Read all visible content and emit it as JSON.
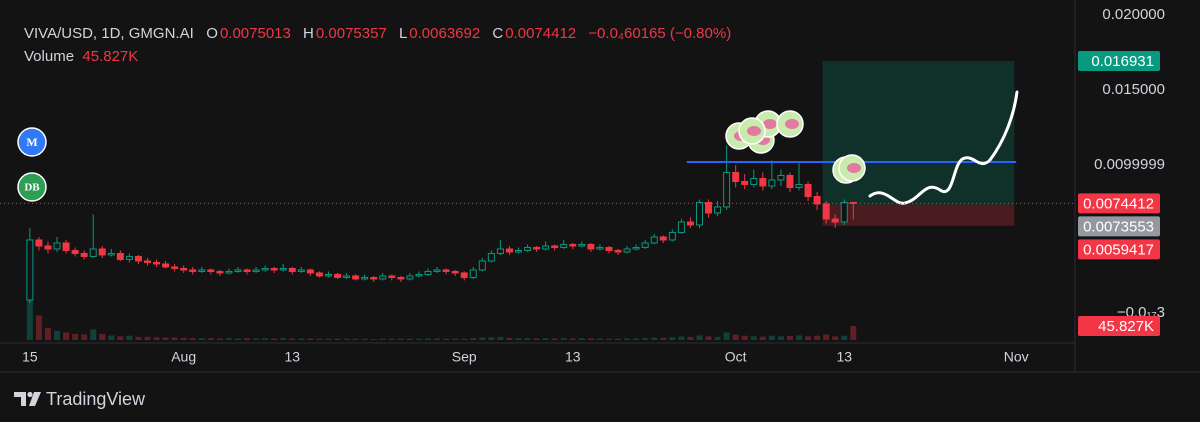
{
  "header": {
    "symbol": "VIVA/USD, 1D, GMGN.AI",
    "o_label": "O",
    "h_label": "H",
    "l_label": "L",
    "c_label": "C",
    "change": "−0.0₄60165 (−0.80%)",
    "volume_label": "Volume"
  },
  "badges": [
    "M",
    "DB"
  ],
  "brand": "TradingView",
  "chart_data": {
    "type": "candlestick",
    "x": [
      0,
      1,
      2,
      3,
      4,
      5,
      6,
      7,
      8,
      9,
      10,
      11,
      12,
      13,
      14,
      15,
      16,
      17,
      18,
      19,
      20,
      21,
      22,
      23,
      24,
      25,
      26,
      27,
      28,
      29,
      30,
      31,
      32,
      33,
      34,
      35,
      36,
      37,
      38,
      39,
      40,
      41,
      42,
      43,
      44,
      45,
      46,
      47,
      48,
      49,
      50,
      51,
      52,
      53,
      54,
      55,
      56,
      57,
      58,
      59,
      60,
      61,
      62,
      63,
      64,
      65,
      66,
      67,
      68,
      69,
      70,
      71,
      72,
      73,
      74,
      75,
      76,
      77,
      78,
      79,
      80,
      81,
      82,
      83,
      84,
      85,
      86,
      87,
      88,
      89,
      90,
      91
    ],
    "open": [
      0.001,
      0.005,
      0.0046,
      0.0044,
      0.0048,
      0.0043,
      0.0041,
      0.0039,
      0.0044,
      0.004,
      0.0041,
      0.0037,
      0.0039,
      0.0036,
      0.0035,
      0.0034,
      0.0032,
      0.0031,
      0.003,
      0.0029,
      0.003,
      0.0029,
      0.0028,
      0.0029,
      0.003,
      0.0029,
      0.003,
      0.0031,
      0.003,
      0.0031,
      0.0029,
      0.003,
      0.0028,
      0.0026,
      0.0027,
      0.0025,
      0.0026,
      0.0024,
      0.0025,
      0.0024,
      0.0026,
      0.0025,
      0.0024,
      0.0026,
      0.0027,
      0.0029,
      0.003,
      0.0029,
      0.0028,
      0.0025,
      0.003,
      0.0036,
      0.0041,
      0.0044,
      0.0042,
      0.0043,
      0.0045,
      0.0044,
      0.0046,
      0.0045,
      0.0047,
      0.0046,
      0.0047,
      0.0044,
      0.0045,
      0.0043,
      0.0042,
      0.0044,
      0.0045,
      0.0048,
      0.0052,
      0.005,
      0.0055,
      0.0062,
      0.006,
      0.0075,
      0.0068,
      0.0072,
      0.0095,
      0.0089,
      0.0087,
      0.0091,
      0.0086,
      0.009,
      0.0093,
      0.0085,
      0.0087,
      0.0079,
      0.0074,
      0.0064,
      0.0062,
      0.0075013
    ],
    "high": [
      0.0058,
      0.0052,
      0.0049,
      0.0052,
      0.005,
      0.0045,
      0.0043,
      0.0067,
      0.0046,
      0.0044,
      0.0043,
      0.0041,
      0.004,
      0.0038,
      0.0037,
      0.0036,
      0.0034,
      0.0033,
      0.0032,
      0.0032,
      0.0031,
      0.003,
      0.0031,
      0.0032,
      0.0031,
      0.0032,
      0.0033,
      0.0032,
      0.0034,
      0.0032,
      0.0032,
      0.0031,
      0.0029,
      0.0029,
      0.0028,
      0.0028,
      0.0027,
      0.0027,
      0.0026,
      0.0028,
      0.0027,
      0.0026,
      0.0028,
      0.0029,
      0.0031,
      0.0032,
      0.0031,
      0.003,
      0.0029,
      0.0032,
      0.0038,
      0.0043,
      0.005,
      0.0046,
      0.0045,
      0.0047,
      0.0046,
      0.0049,
      0.0047,
      0.005,
      0.0048,
      0.0049,
      0.0048,
      0.0047,
      0.0046,
      0.0044,
      0.0046,
      0.0047,
      0.005,
      0.0054,
      0.0053,
      0.0057,
      0.0064,
      0.0065,
      0.0077,
      0.0077,
      0.0076,
      0.0113,
      0.01,
      0.0094,
      0.0097,
      0.0095,
      0.0103,
      0.0097,
      0.0095,
      0.0101,
      0.0089,
      0.0082,
      0.0076,
      0.0067,
      0.0077,
      0.0075357
    ],
    "low": [
      0.0008,
      0.0043,
      0.0041,
      0.0042,
      0.0041,
      0.0039,
      0.0037,
      0.0038,
      0.0038,
      0.0039,
      0.0036,
      0.0035,
      0.0034,
      0.0033,
      0.0032,
      0.0031,
      0.0029,
      0.0028,
      0.0027,
      0.0028,
      0.0027,
      0.0026,
      0.0027,
      0.0028,
      0.0027,
      0.0028,
      0.0029,
      0.0028,
      0.0029,
      0.0027,
      0.0028,
      0.0026,
      0.0025,
      0.0025,
      0.0024,
      0.0024,
      0.0023,
      0.0023,
      0.0022,
      0.0023,
      0.0023,
      0.0022,
      0.0023,
      0.0025,
      0.0026,
      0.0028,
      0.0027,
      0.0026,
      0.0023,
      0.0024,
      0.0029,
      0.0035,
      0.004,
      0.004,
      0.0041,
      0.0042,
      0.0042,
      0.0043,
      0.0043,
      0.0044,
      0.0044,
      0.0045,
      0.0042,
      0.0043,
      0.0041,
      0.004,
      0.0041,
      0.0043,
      0.0044,
      0.0047,
      0.0048,
      0.0049,
      0.0054,
      0.0058,
      0.0058,
      0.0065,
      0.0066,
      0.007,
      0.0085,
      0.0084,
      0.0085,
      0.0083,
      0.0084,
      0.0086,
      0.0082,
      0.0083,
      0.0076,
      0.007,
      0.0061,
      0.0058,
      0.006,
      0.0063692
    ],
    "close": [
      0.005,
      0.0046,
      0.0044,
      0.0048,
      0.0043,
      0.0041,
      0.0039,
      0.0044,
      0.004,
      0.0041,
      0.0037,
      0.0039,
      0.0036,
      0.0035,
      0.0034,
      0.0032,
      0.0031,
      0.003,
      0.0029,
      0.003,
      0.0029,
      0.0028,
      0.0029,
      0.003,
      0.0029,
      0.003,
      0.0031,
      0.003,
      0.0031,
      0.0029,
      0.003,
      0.0028,
      0.0026,
      0.0027,
      0.0025,
      0.0026,
      0.0024,
      0.0025,
      0.0024,
      0.0026,
      0.0025,
      0.0024,
      0.0026,
      0.0027,
      0.0029,
      0.003,
      0.0029,
      0.0028,
      0.0025,
      0.003,
      0.0036,
      0.0041,
      0.0044,
      0.0042,
      0.0043,
      0.0045,
      0.0044,
      0.0046,
      0.0045,
      0.0047,
      0.0046,
      0.0047,
      0.0044,
      0.0045,
      0.0043,
      0.0042,
      0.0044,
      0.0045,
      0.0048,
      0.0052,
      0.005,
      0.0055,
      0.0062,
      0.006,
      0.0075,
      0.0068,
      0.0072,
      0.0095,
      0.0089,
      0.0087,
      0.0091,
      0.0086,
      0.009,
      0.0093,
      0.0085,
      0.0087,
      0.0079,
      0.0074,
      0.0064,
      0.0062,
      0.0075,
      0.0074412
    ],
    "volume": [
      150,
      80,
      40,
      30,
      25,
      20,
      18,
      35,
      20,
      15,
      12,
      14,
      10,
      10,
      9,
      8,
      8,
      7,
      6,
      6,
      6,
      5,
      6,
      5,
      6,
      5,
      6,
      5,
      6,
      5,
      5,
      5,
      4,
      4,
      4,
      4,
      4,
      4,
      3,
      4,
      4,
      4,
      4,
      4,
      5,
      5,
      4,
      4,
      4,
      6,
      8,
      9,
      10,
      7,
      6,
      6,
      5,
      6,
      5,
      6,
      5,
      6,
      5,
      5,
      4,
      4,
      5,
      5,
      6,
      8,
      7,
      9,
      12,
      10,
      15,
      12,
      10,
      25,
      18,
      14,
      12,
      11,
      14,
      12,
      13,
      15,
      12,
      14,
      18,
      12,
      14,
      45.827
    ],
    "volume_label": "45.827K",
    "volume_ylim": [
      0,
      196
    ],
    "volume_scale_label": "−0.0₁₇3",
    "up_color": "#089981",
    "down_color": "#f23645",
    "xlim": [
      -3.3,
      115.5
    ],
    "xticks": [
      {
        "value": 0,
        "label": "15"
      },
      {
        "value": 17,
        "label": "Aug"
      },
      {
        "value": 29,
        "label": "13"
      },
      {
        "value": 48,
        "label": "Sep"
      },
      {
        "value": 60,
        "label": "13"
      },
      {
        "value": 78,
        "label": "Oct"
      },
      {
        "value": 90,
        "label": "13"
      },
      {
        "value": 109,
        "label": "Nov"
      }
    ],
    "ylim": [
      -0.00167,
      0.021
    ],
    "yticks": [
      {
        "value": 0.02,
        "label": "0.020000"
      },
      {
        "value": 0.015,
        "label": "0.015000"
      },
      {
        "value": 0.0099999,
        "label": "0.0099999"
      }
    ],
    "price_tags": [
      {
        "value": 0.016931,
        "color": "#089981"
      },
      {
        "value": 0.0074412,
        "color": "#f23645",
        "dotted_line": true
      },
      {
        "value": 0.0073553,
        "color": "#9598a1"
      },
      {
        "value": 0.0059417,
        "color": "#f23645"
      }
    ],
    "position": {
      "target": 0.016931,
      "entry": 0.0073553,
      "stop": 0.0059417,
      "x": [
        87.6,
        108.8
      ]
    },
    "level_line": {
      "value": 0.0102,
      "x": [
        72.6,
        109
      ],
      "color": "#2962ff"
    }
  }
}
